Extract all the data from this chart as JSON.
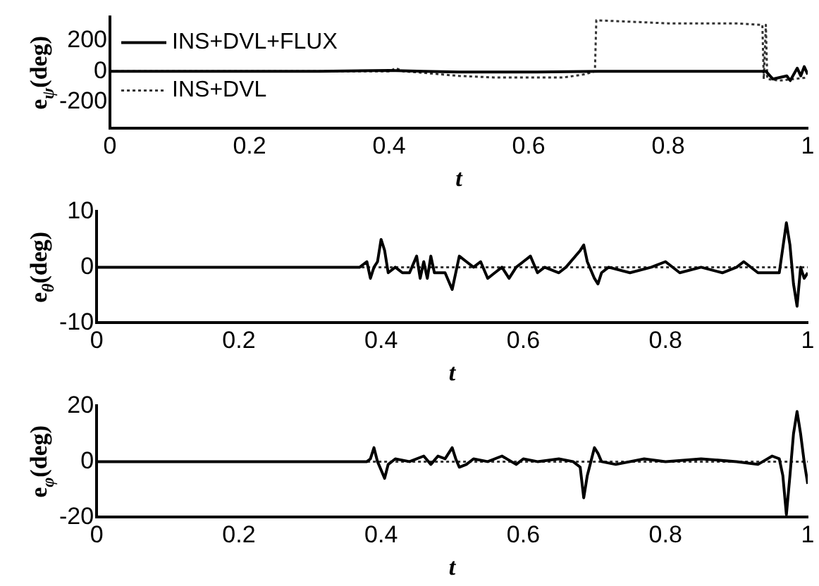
{
  "chart_data": [
    {
      "type": "line",
      "xlabel": "t",
      "ylabel": "e$_{ψ}$(deg)",
      "xlim": [
        0,
        1
      ],
      "xticks": [
        0,
        0.2,
        0.4,
        0.6,
        0.8,
        1
      ],
      "ylim": [
        -370,
        350
      ],
      "yticks": [
        -200,
        0,
        200
      ],
      "legend": "top left",
      "marker": "none",
      "series": [
        {
          "name": "INS+DVL+FLUX",
          "color": "#000000",
          "line_style": "solid",
          "x": [
            0,
            0.3,
            0.4,
            0.45,
            0.5,
            0.6,
            0.7,
            0.8,
            0.9,
            0.94,
            0.95,
            0.96,
            0.97,
            0.975,
            0.98,
            0.985,
            0.99,
            0.995,
            1
          ],
          "values": [
            0,
            0,
            5,
            0,
            -5,
            -5,
            0,
            0,
            0,
            0,
            -50,
            -40,
            -30,
            -60,
            -20,
            20,
            -30,
            30,
            -20
          ]
        },
        {
          "name": "INS+DVL",
          "color": "#333333",
          "line_style": "dotted",
          "x": [
            0,
            0.4,
            0.41,
            0.42,
            0.45,
            0.5,
            0.55,
            0.6,
            0.65,
            0.68,
            0.695,
            0.697,
            0.75,
            0.8,
            0.9,
            0.935,
            0.937,
            0.94,
            0.942,
            0.96,
            0.98,
            1
          ],
          "values": [
            0,
            0,
            20,
            0,
            -10,
            -30,
            -40,
            -40,
            -40,
            -20,
            0,
            330,
            320,
            310,
            310,
            300,
            -50,
            300,
            -50,
            -60,
            -50,
            -40
          ]
        }
      ]
    },
    {
      "type": "line",
      "xlabel": "t",
      "ylabel": "e$_{θ}$(deg)",
      "xlim": [
        0,
        1
      ],
      "xticks": [
        0,
        0.2,
        0.4,
        0.6,
        0.8,
        1
      ],
      "ylim": [
        -10,
        10
      ],
      "yticks": [
        -10,
        0,
        10
      ],
      "marker": "none",
      "series": [
        {
          "color": "#000000",
          "line_style": "solid",
          "x": [
            0,
            0.37,
            0.38,
            0.385,
            0.39,
            0.395,
            0.4,
            0.405,
            0.41,
            0.42,
            0.43,
            0.44,
            0.45,
            0.455,
            0.46,
            0.465,
            0.47,
            0.475,
            0.48,
            0.49,
            0.5,
            0.505,
            0.51,
            0.52,
            0.53,
            0.54,
            0.55,
            0.56,
            0.57,
            0.58,
            0.59,
            0.6,
            0.61,
            0.62,
            0.63,
            0.65,
            0.66,
            0.68,
            0.685,
            0.69,
            0.7,
            0.705,
            0.71,
            0.72,
            0.75,
            0.78,
            0.8,
            0.82,
            0.85,
            0.88,
            0.9,
            0.91,
            0.93,
            0.96,
            0.97,
            0.975,
            0.98,
            0.985,
            0.99,
            0.995,
            1
          ],
          "values": [
            0,
            0,
            1,
            -2,
            0,
            1,
            5,
            3,
            -1,
            0,
            -1,
            -1,
            2,
            -2,
            1,
            -2,
            2,
            -1,
            -1,
            -1,
            -4,
            -1,
            2,
            1,
            0,
            1,
            -2,
            -1,
            0,
            -2,
            0,
            1,
            2,
            -1,
            0,
            -1,
            0,
            3,
            4,
            1,
            -2,
            -3,
            -1,
            0,
            -1,
            0,
            1,
            -1,
            0,
            -1,
            0,
            1,
            -1,
            -1,
            8,
            4,
            -3,
            -7,
            0,
            -2,
            -1
          ]
        },
        {
          "color": "#333333",
          "line_style": "dotted",
          "x": [
            0,
            1
          ],
          "values": [
            0,
            0
          ]
        }
      ]
    },
    {
      "type": "line",
      "xlabel": "t",
      "ylabel": "e$_{φ}$(deg)",
      "xlim": [
        0,
        1
      ],
      "xticks": [
        0,
        0.2,
        0.4,
        0.6,
        0.8,
        1
      ],
      "ylim": [
        -20,
        20
      ],
      "yticks": [
        -20,
        0,
        20
      ],
      "marker": "none",
      "series": [
        {
          "color": "#000000",
          "line_style": "solid",
          "x": [
            0,
            0.38,
            0.385,
            0.39,
            0.395,
            0.4,
            0.405,
            0.41,
            0.42,
            0.44,
            0.46,
            0.47,
            0.48,
            0.49,
            0.5,
            0.505,
            0.51,
            0.52,
            0.53,
            0.55,
            0.57,
            0.59,
            0.6,
            0.62,
            0.65,
            0.67,
            0.68,
            0.685,
            0.69,
            0.695,
            0.7,
            0.705,
            0.71,
            0.73,
            0.77,
            0.8,
            0.85,
            0.9,
            0.93,
            0.95,
            0.96,
            0.965,
            0.97,
            0.975,
            0.98,
            0.985,
            0.99,
            0.995,
            1
          ],
          "values": [
            0,
            0,
            1,
            5,
            0,
            -3,
            -6,
            -1,
            1,
            0,
            2,
            -1,
            2,
            1,
            5,
            1,
            -2,
            -1,
            1,
            0,
            2,
            -1,
            1,
            0,
            1,
            0,
            -2,
            -13,
            -5,
            0,
            5,
            3,
            0,
            -1,
            1,
            0,
            1,
            0,
            -1,
            2,
            1,
            -5,
            -19,
            -5,
            10,
            18,
            10,
            0,
            -8
          ]
        },
        {
          "color": "#333333",
          "line_style": "dotted",
          "x": [
            0,
            1
          ],
          "values": [
            0,
            0
          ]
        }
      ]
    }
  ]
}
